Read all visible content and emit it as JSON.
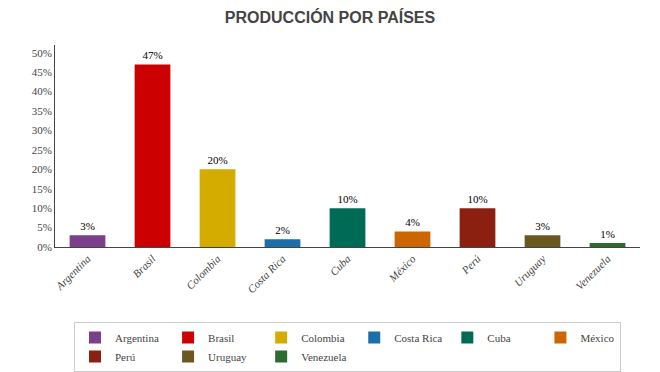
{
  "chart_data": {
    "type": "bar",
    "title": "PRODUCCIÓN POR PAÍSES",
    "categories": [
      "Argentina",
      "Brasil",
      "Colombia",
      "Costa Rica",
      "Cuba",
      "México",
      "Perú",
      "Uruguay",
      "Venezuela"
    ],
    "values": [
      3,
      47,
      20,
      2,
      10,
      4,
      10,
      3,
      1
    ],
    "value_labels": [
      "3%",
      "47%",
      "20%",
      "2%",
      "10%",
      "4%",
      "10%",
      "3%",
      "1%"
    ],
    "data_labels": true,
    "colors": [
      "#7B3F8C",
      "#CC0000",
      "#D4AC00",
      "#1A6EAA",
      "#006B54",
      "#CC6600",
      "#8B2010",
      "#6B5820",
      "#2E6B30"
    ],
    "ylim": [
      0,
      52
    ],
    "yticks": [
      {
        "value": 0,
        "label": "0%"
      },
      {
        "value": 5,
        "label": "5%"
      },
      {
        "value": 10,
        "label": "10%"
      },
      {
        "value": 15,
        "label": "15%"
      },
      {
        "value": 20,
        "label": "20%"
      },
      {
        "value": 25,
        "label": "25%"
      },
      {
        "value": 30,
        "label": "30%"
      },
      {
        "value": 35,
        "label": "35%"
      },
      {
        "value": 40,
        "label": "40%"
      },
      {
        "value": 45,
        "label": "45%"
      },
      {
        "value": 50,
        "label": "50%"
      }
    ],
    "grid": false,
    "legend": "bottom"
  }
}
